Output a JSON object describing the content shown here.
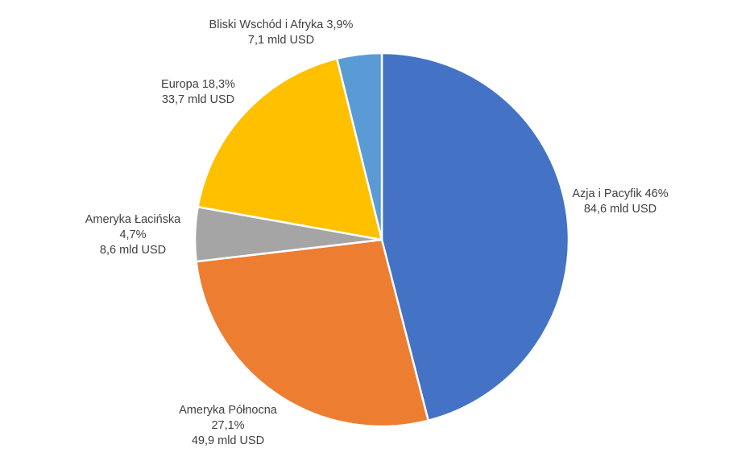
{
  "chart_data": {
    "type": "pie",
    "title": "",
    "start_angle_deg": 0,
    "direction": "clockwise",
    "slices": [
      {
        "name": "Azja i Pacyfik",
        "percent_label": "46%",
        "value": 84.6,
        "percent": 46.0,
        "value_label": "84,6 mld USD",
        "color": "#4472C4"
      },
      {
        "name": "Ameryka Północna",
        "percent_label": "27,1%",
        "value": 49.9,
        "percent": 27.1,
        "value_label": "49,9 mld USD",
        "color": "#ED7D31"
      },
      {
        "name": "Ameryka Łacińska",
        "percent_label": "4,7%",
        "value": 8.6,
        "percent": 4.7,
        "value_label": "8,6 mld USD",
        "color": "#A5A5A5"
      },
      {
        "name": "Europa",
        "percent_label": "18,3%",
        "value": 33.7,
        "percent": 18.3,
        "value_label": "33,7 mld USD",
        "color": "#FFC000"
      },
      {
        "name": "Bliski Wschód i Afryka",
        "percent_label": "3,9%",
        "value": 7.1,
        "percent": 3.9,
        "value_label": "7,1 mld USD",
        "color": "#5B9BD5"
      }
    ],
    "labels": [
      {
        "lines": [
          "Azja i Pacyfik 46%",
          "84,6 mld USD"
        ]
      },
      {
        "lines": [
          "Ameryka Północna",
          "27,1%",
          "49,9 mld USD"
        ]
      },
      {
        "lines": [
          "Ameryka Łacińska",
          "4,7%",
          "8,6 mld USD"
        ]
      },
      {
        "lines": [
          "Europa 18,3%",
          "33,7 mld USD"
        ]
      },
      {
        "lines": [
          "Bliski Wschód i Afryka 3,9%",
          "7,1 mld USD"
        ]
      }
    ]
  }
}
